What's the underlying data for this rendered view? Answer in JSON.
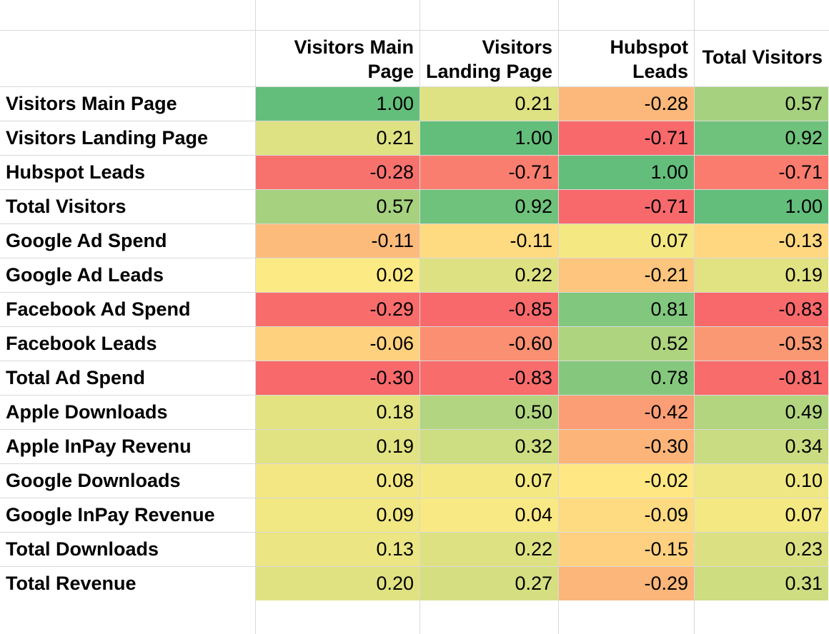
{
  "columns": [
    {
      "lines": [
        "Visitors Main",
        "Page"
      ]
    },
    {
      "lines": [
        "Visitors",
        "Landing Page"
      ]
    },
    {
      "lines": [
        "Hubspot",
        "Leads"
      ]
    },
    {
      "lines": [
        "Total Visitors"
      ]
    }
  ],
  "rows": [
    {
      "label": "Visitors Main Page",
      "values": [
        "1.00",
        "0.21",
        "-0.28",
        "0.57"
      ]
    },
    {
      "label": "Visitors Landing Page",
      "values": [
        "0.21",
        "1.00",
        "-0.71",
        "0.92"
      ]
    },
    {
      "label": "Hubspot Leads",
      "values": [
        "-0.28",
        "-0.71",
        "1.00",
        "-0.71"
      ]
    },
    {
      "label": "Total Visitors",
      "values": [
        "0.57",
        "0.92",
        "-0.71",
        "1.00"
      ]
    },
    {
      "label": "Google Ad Spend",
      "values": [
        "-0.11",
        "-0.11",
        "0.07",
        "-0.13"
      ]
    },
    {
      "label": "Google Ad Leads",
      "values": [
        "0.02",
        "0.22",
        "-0.21",
        "0.19"
      ]
    },
    {
      "label": "Facebook Ad Spend",
      "values": [
        "-0.29",
        "-0.85",
        "0.81",
        "-0.83"
      ]
    },
    {
      "label": "Facebook Leads",
      "values": [
        "-0.06",
        "-0.60",
        "0.52",
        "-0.53"
      ]
    },
    {
      "label": "Total Ad Spend",
      "values": [
        "-0.30",
        "-0.83",
        "0.78",
        "-0.81"
      ]
    },
    {
      "label": "Apple Downloads",
      "values": [
        "0.18",
        "0.50",
        "-0.42",
        "0.49"
      ]
    },
    {
      "label": "Apple InPay Revenu",
      "values": [
        "0.19",
        "0.32",
        "-0.30",
        "0.34"
      ]
    },
    {
      "label": "Google Downloads",
      "values": [
        "0.08",
        "0.07",
        "-0.02",
        "0.10"
      ]
    },
    {
      "label": "Google InPay Revenue",
      "values": [
        "0.09",
        "0.04",
        "-0.09",
        "0.07"
      ]
    },
    {
      "label": "Total Downloads",
      "values": [
        "0.13",
        "0.22",
        "-0.15",
        "0.23"
      ]
    },
    {
      "label": "Total Revenue",
      "values": [
        "0.20",
        "0.27",
        "-0.29",
        "0.31"
      ]
    }
  ],
  "colors": {
    "gridline": "#d9d9d9",
    "scale_green": "#63be7b",
    "scale_yellow": "#ffeb84",
    "scale_red": "#f8696b"
  }
}
